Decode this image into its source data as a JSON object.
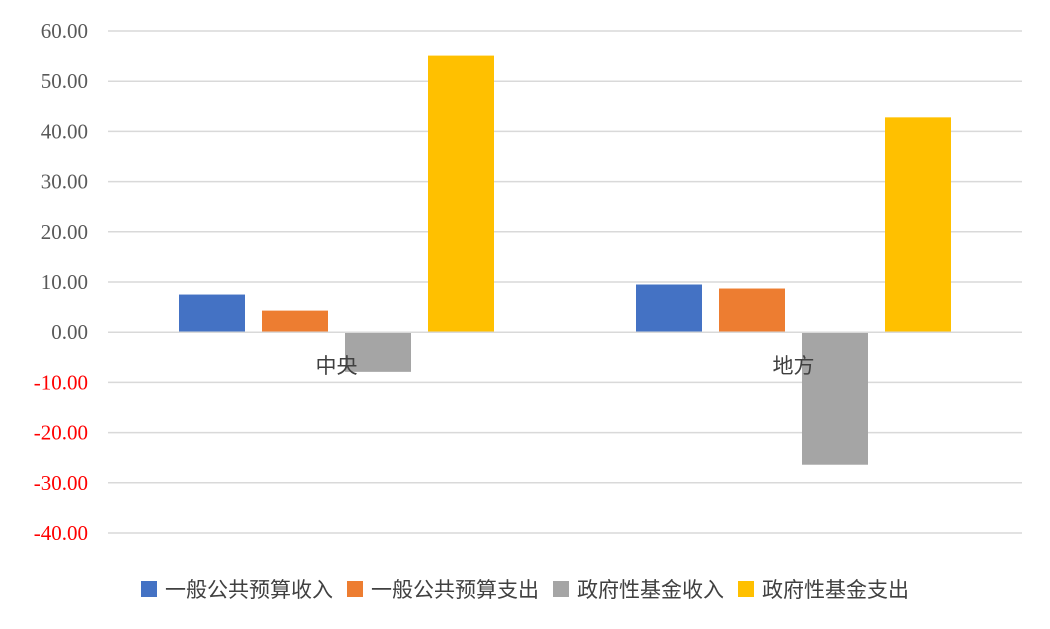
{
  "chart_data": {
    "type": "bar",
    "categories": [
      "中央",
      "地方"
    ],
    "series": [
      {
        "name": "一般公共预算收入",
        "values": [
          7.5,
          9.5
        ],
        "color": "#4472C4"
      },
      {
        "name": "一般公共预算支出",
        "values": [
          4.3,
          8.7
        ],
        "color": "#ED7D31"
      },
      {
        "name": "政府性基金收入",
        "values": [
          -7.9,
          -26.4
        ],
        "color": "#A5A5A5"
      },
      {
        "name": "政府性基金支出",
        "values": [
          55.1,
          42.8
        ],
        "color": "#FFC000"
      }
    ],
    "ylim": [
      -40,
      60
    ],
    "yticks": [
      "60.00",
      "50.00",
      "40.00",
      "30.00",
      "20.00",
      "10.00",
      "0.00",
      "-10.00",
      "-20.00",
      "-30.00",
      "-40.00"
    ],
    "negative_tick_color": "#FF0000",
    "positive_tick_color": "#595959",
    "grid": true,
    "legend_position": "bottom",
    "title": "",
    "xlabel": "",
    "ylabel": ""
  }
}
